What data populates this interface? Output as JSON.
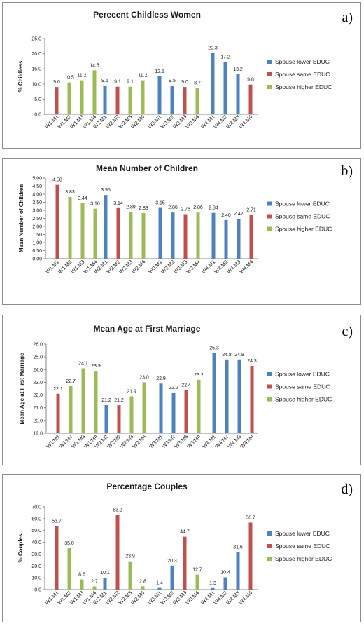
{
  "colors": {
    "lower": "#4f81bd",
    "same": "#c0504d",
    "higher": "#9bbb59"
  },
  "legend": [
    "Spouse lower EDUC",
    "Spouse same EDUC",
    "Spouse higher EDUC"
  ],
  "chart_data": [
    {
      "type": "bar",
      "panel_label": "a)",
      "title": "Perecent Childless Women",
      "ylabel": "% Childless",
      "ylim": [
        0,
        25
      ],
      "yticks": [
        "0.0",
        "5.0",
        "10.0",
        "15.0",
        "20.0",
        "25.0"
      ],
      "tick_step": 5,
      "categories": [
        "W1:M1",
        "W1:M2",
        "W1:M3",
        "W1:M4",
        "W2:M1",
        "W2:M2",
        "W2:M3",
        "W2:M4",
        "W3:M1",
        "W3:M2",
        "W3:M3",
        "W3:M4",
        "W4:M1",
        "W4:M2",
        "W4:M3",
        "W4:M4"
      ],
      "series": [
        {
          "name": "Spouse lower EDUC",
          "values": [
            null,
            null,
            null,
            null,
            9.5,
            null,
            null,
            null,
            12.5,
            9.5,
            null,
            null,
            20.3,
            17.2,
            13.2,
            null
          ]
        },
        {
          "name": "Spouse same EDUC",
          "values": [
            9.0,
            null,
            null,
            null,
            null,
            9.1,
            null,
            null,
            null,
            null,
            9.0,
            null,
            null,
            null,
            null,
            9.8
          ]
        },
        {
          "name": "Spouse higher EDUC",
          "values": [
            null,
            10.5,
            11.2,
            14.5,
            null,
            null,
            9.1,
            11.2,
            null,
            null,
            null,
            8.7,
            null,
            null,
            null,
            null
          ]
        }
      ],
      "data_labels": [
        "9.0",
        "10.5",
        "11.2",
        "14.5",
        "9.5",
        "9.1",
        "9.1",
        "11.2",
        "12.5",
        "9.5",
        "9.0",
        "8.7",
        "20.3",
        "17.2",
        "13.2",
        "9.8"
      ]
    },
    {
      "type": "bar",
      "panel_label": "b)",
      "title": "Mean Number of Children",
      "ylabel": "Mean Number of Children",
      "ylim": [
        0,
        5
      ],
      "yticks": [
        "0.00",
        "0.50",
        "1.00",
        "1.50",
        "2.00",
        "2.50",
        "3.00",
        "3.50",
        "4.00",
        "4.50",
        "5.00"
      ],
      "tick_step": 0.5,
      "categories": [
        "W1:M1",
        "W1:M2",
        "W1:M3",
        "W1:M4",
        "W2:M1",
        "W2:M2",
        "W2:M3",
        "W2:M4",
        "W3:M1",
        "W3:M2",
        "W3:M3",
        "W3:M4",
        "W4:M1",
        "W4:M2",
        "W4:M3",
        "W4:M4"
      ],
      "series": [
        {
          "name": "Spouse lower EDUC",
          "values": [
            null,
            null,
            null,
            null,
            3.95,
            null,
            null,
            null,
            3.15,
            2.86,
            null,
            null,
            2.84,
            2.4,
            2.47,
            null
          ]
        },
        {
          "name": "Spouse same EDUC",
          "values": [
            4.58,
            null,
            null,
            null,
            null,
            3.14,
            null,
            null,
            null,
            null,
            2.76,
            null,
            null,
            null,
            null,
            2.71
          ]
        },
        {
          "name": "Spouse higher EDUC",
          "values": [
            null,
            3.83,
            3.44,
            3.1,
            null,
            null,
            2.89,
            2.83,
            null,
            null,
            null,
            2.86,
            null,
            null,
            null,
            null
          ]
        }
      ],
      "data_labels": [
        "4.58",
        "3.83",
        "3.44",
        "3.10",
        "3.95",
        "3.14",
        "2.89",
        "2.83",
        "3.15",
        "2.86",
        "2.76",
        "2.86",
        "2.84",
        "2.40",
        "2.47",
        "2.71"
      ]
    },
    {
      "type": "bar",
      "panel_label": "c)",
      "title": "Mean Age at First Marriage",
      "ylabel": "Mean Age at First Marriage",
      "ylim": [
        19,
        26
      ],
      "yticks": [
        "19.0",
        "20.0",
        "21.0",
        "22.0",
        "23.0",
        "24.0",
        "25.0",
        "26.0"
      ],
      "tick_step": 1,
      "categories": [
        "W1:M1",
        "W1:M2",
        "W1:M3",
        "W1:M4",
        "W2:M1",
        "W2:M2",
        "W2:M3",
        "W2:M4",
        "W3:M1",
        "W3:M2",
        "W3:M3",
        "W3:M4",
        "W4:M1",
        "W4:M2",
        "W4:M3",
        "W4:M4"
      ],
      "series": [
        {
          "name": "Spouse lower EDUC",
          "values": [
            null,
            null,
            null,
            null,
            21.2,
            null,
            null,
            null,
            22.9,
            22.2,
            null,
            null,
            25.3,
            24.8,
            24.8,
            null
          ]
        },
        {
          "name": "Spouse same EDUC",
          "values": [
            22.1,
            null,
            null,
            null,
            null,
            21.2,
            null,
            null,
            null,
            null,
            22.4,
            null,
            null,
            null,
            null,
            24.3
          ]
        },
        {
          "name": "Spouse higher EDUC",
          "values": [
            null,
            22.7,
            24.1,
            23.9,
            null,
            null,
            21.9,
            23.0,
            null,
            null,
            null,
            23.2,
            null,
            null,
            null,
            null
          ]
        }
      ],
      "data_labels": [
        "22.1",
        "22.7",
        "24.1",
        "23.9",
        "21.2",
        "21.2",
        "21.9",
        "23.0",
        "22.9",
        "22.2",
        "22.4",
        "23.2",
        "25.3",
        "24.8",
        "24.8",
        "24.3"
      ]
    },
    {
      "type": "bar",
      "panel_label": "d)",
      "title": "Percentage Couples",
      "ylabel": "% Couples",
      "ylim": [
        0,
        70
      ],
      "yticks": [
        "0.0",
        "10.0",
        "20.0",
        "30.0",
        "40.0",
        "50.0",
        "60.0",
        "70.0"
      ],
      "tick_step": 10,
      "categories": [
        "W1:M1",
        "W1:M2",
        "W1:M3",
        "W1:M4",
        "W2:M1",
        "W2:M2",
        "W2:M3",
        "W2:M4",
        "W3:M1",
        "W3:M2",
        "W3:M3",
        "W3:M4",
        "W4:M1",
        "W4:M2",
        "W4:M3",
        "W4:M4"
      ],
      "series": [
        {
          "name": "Spouse lower EDUC",
          "values": [
            null,
            null,
            null,
            null,
            10.1,
            null,
            null,
            null,
            1.4,
            20.3,
            null,
            null,
            1.3,
            10.4,
            31.6,
            null
          ]
        },
        {
          "name": "Spouse same EDUC",
          "values": [
            53.7,
            null,
            null,
            null,
            null,
            63.2,
            null,
            null,
            null,
            null,
            44.7,
            null,
            null,
            null,
            null,
            56.7
          ]
        },
        {
          "name": "Spouse higher EDUC",
          "values": [
            null,
            35.0,
            8.6,
            2.7,
            null,
            null,
            23.9,
            2.8,
            null,
            null,
            null,
            12.7,
            null,
            null,
            null,
            null
          ]
        }
      ],
      "data_labels": [
        "53.7",
        "35.0",
        "8.6",
        "2.7",
        "10.1",
        "63.2",
        "23.9",
        "2.8",
        "1.4",
        "20.3",
        "44.7",
        "12.7",
        "1.3",
        "10.4",
        "31.6",
        "56.7"
      ]
    }
  ]
}
